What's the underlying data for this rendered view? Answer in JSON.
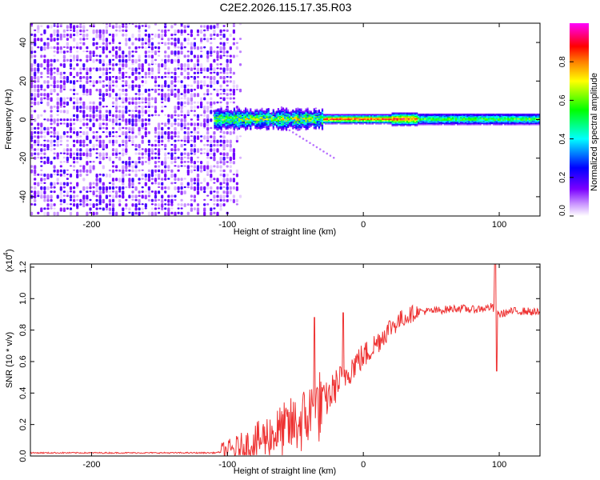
{
  "figure": {
    "title": "C2E2.2026.115.17.35.R03"
  },
  "chart_data": [
    {
      "type": "heatmap",
      "title": "C2E2.2026.115.17.35.R03",
      "xlabel": "Height of straight line (km)",
      "ylabel": "Frequency (Hz)",
      "xlim": [
        -245,
        130
      ],
      "ylim": [
        -50,
        50
      ],
      "xticks": [
        -200,
        -100,
        0,
        100
      ],
      "yticks": [
        -40,
        -20,
        0,
        20,
        40
      ],
      "colorbar": {
        "label": "Normalized spectral amplitude",
        "range": [
          0,
          1
        ],
        "ticks": [
          "0.0",
          "0.2",
          "0.4",
          "0.6",
          "0.8"
        ],
        "tick_values": [
          0.0,
          0.2,
          0.4,
          0.6,
          0.8
        ],
        "colormap": [
          "#ffffff",
          "#7b00ff",
          "#0000ff",
          "#00ffff",
          "#00ff00",
          "#ffff00",
          "#ff7f00",
          "#ff0000",
          "#ff00ff"
        ]
      },
      "regions": [
        {
          "name": "broadband noise",
          "x_range": [
            -245,
            -90
          ],
          "freq_range": [
            -50,
            50
          ],
          "amplitude_range": [
            0.02,
            0.2
          ]
        },
        {
          "name": "carrier line",
          "x_range": [
            -110,
            130
          ],
          "center_freq": 0,
          "amplitude_range": [
            0.2,
            1.0
          ]
        }
      ]
    },
    {
      "type": "line",
      "xlabel": "Height of straight line (km)",
      "ylabel": "SNR (10 * v/v)",
      "y_scale_label": "(x10",
      "y_scale_exponent": "4",
      "y_scale": 10000,
      "xlim": [
        -245,
        130
      ],
      "ylim": [
        0.0,
        1.22
      ],
      "xticks": [
        -200,
        -100,
        0,
        100
      ],
      "yticks": [
        "0.0",
        "0.2",
        "0.4",
        "0.6",
        "0.8",
        "1.0",
        "1.2"
      ],
      "ytick_values": [
        0.0,
        0.2,
        0.4,
        0.6,
        0.8,
        1.0,
        1.2
      ],
      "color": "#ee3333",
      "series": [
        {
          "name": "SNR",
          "x": [
            -245,
            -200,
            -150,
            -110,
            -100,
            -90,
            -80,
            -70,
            -60,
            -50,
            -45,
            -40,
            -35,
            -30,
            -25,
            -20,
            -15,
            -10,
            -5,
            0,
            10,
            20,
            30,
            40,
            50,
            60,
            70,
            80,
            90,
            95,
            97,
            100,
            110,
            120,
            130
          ],
          "y": [
            0.02,
            0.02,
            0.02,
            0.02,
            0.03,
            0.05,
            0.08,
            0.13,
            0.16,
            0.2,
            0.22,
            0.26,
            0.3,
            0.33,
            0.38,
            0.45,
            0.5,
            0.55,
            0.6,
            0.63,
            0.72,
            0.82,
            0.88,
            0.92,
            0.92,
            0.93,
            0.94,
            0.93,
            0.94,
            0.95,
            0.9,
            0.9,
            0.92,
            0.92,
            0.91
          ],
          "spikes": [
            {
              "x": -36,
              "y": 0.88
            },
            {
              "x": -15,
              "y": 0.91
            },
            {
              "x": 97,
              "y": 1.22
            },
            {
              "x": 98,
              "y": 0.54
            }
          ]
        }
      ]
    }
  ]
}
